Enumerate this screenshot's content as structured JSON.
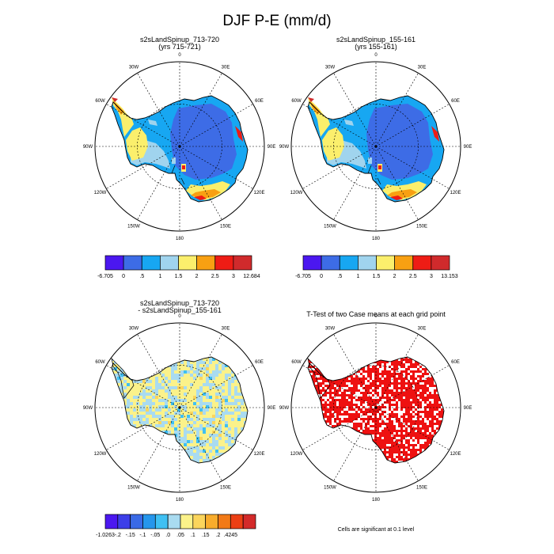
{
  "page": {
    "title": "DJF P-E (mm/d)"
  },
  "chart_data": [
    {
      "type": "heatmap",
      "projection": "south-polar-stereographic",
      "title_lines": [
        "s2sLandSpinup_713-720",
        "(yrs 715-721)"
      ],
      "lon_labels": [
        "0",
        "30E",
        "60E",
        "90E",
        "120E",
        "150E",
        "180",
        "150W",
        "120W",
        "90W",
        "60W",
        "30W"
      ],
      "colorbar": {
        "colors": [
          "#4b17f0",
          "#3d6ce6",
          "#17a7f2",
          "#a0d4ee",
          "#fbef6c",
          "#f8a012",
          "#ee1c15",
          "#d02a2c"
        ],
        "labels": [
          "-6.705",
          "0",
          ".5",
          "1",
          "1.5",
          "2",
          "2.5",
          "3",
          "12.684"
        ]
      },
      "pattern": "field"
    },
    {
      "type": "heatmap",
      "projection": "south-polar-stereographic",
      "title_lines": [
        "s2sLandSpinup_155-161",
        "(yrs 155-161)"
      ],
      "lon_labels": [
        "0",
        "30E",
        "60E",
        "90E",
        "120E",
        "150E",
        "180",
        "150W",
        "120W",
        "90W",
        "60W",
        "30W"
      ],
      "colorbar": {
        "colors": [
          "#4b17f0",
          "#3d6ce6",
          "#17a7f2",
          "#a0d4ee",
          "#fbef6c",
          "#f8a012",
          "#ee1c15",
          "#d02a2c"
        ],
        "labels": [
          "-6.705",
          "0",
          ".5",
          "1",
          "1.5",
          "2",
          "2.5",
          "3",
          "13.153"
        ]
      },
      "pattern": "field"
    },
    {
      "type": "heatmap",
      "projection": "south-polar-stereographic",
      "title_lines": [
        "s2sLandSpinup_713-720",
        "- s2sLandSpinup_155-161"
      ],
      "lon_labels": [
        "0",
        "30E",
        "60E",
        "90E",
        "120E",
        "150E",
        "180",
        "150W",
        "120W",
        "90W",
        "60W",
        "30W"
      ],
      "colorbar": {
        "colors": [
          "#4b17f0",
          "#3c3ee8",
          "#3a6ae6",
          "#2596ec",
          "#3fc0f3",
          "#a9dbf0",
          "#fbf28a",
          "#fbd55c",
          "#f8ac2c",
          "#f27a17",
          "#ec3f14",
          "#d32a2a"
        ],
        "labels": [
          "-1.0263",
          "-.2",
          "-.15",
          "-.1",
          "-.05",
          ".0",
          ".05",
          ".1",
          ".15",
          ".2",
          ".4245"
        ]
      },
      "pattern": "difference"
    },
    {
      "type": "heatmap",
      "projection": "south-polar-stereographic",
      "title_lines": [
        "T-Test of two Case means at each grid point"
      ],
      "lon_labels": [
        "0",
        "30E",
        "60E",
        "90E",
        "120E",
        "150E",
        "180",
        "150W",
        "120W",
        "90W",
        "60W",
        "30W"
      ],
      "note": "Cells are significant at 0.1 level",
      "colors": {
        "significant": "#ee1111"
      },
      "pattern": "ttest"
    }
  ]
}
